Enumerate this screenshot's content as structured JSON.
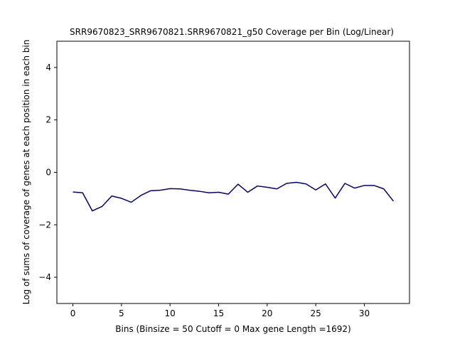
{
  "chart_data": {
    "type": "line",
    "title": "SRR9670823_SRR9670821.SRR9670821_g50 Coverage per Bin (Log/Linear)",
    "xlabel": "Bins  (Binsize = 50 Cutoff = 0 Max gene Length =1692)",
    "ylabel": "Log of sums of coverage of genes at each position in each bin",
    "xlim": [
      -1.65,
      34.65
    ],
    "ylim": [
      -5,
      5
    ],
    "xticks": [
      0,
      5,
      10,
      15,
      20,
      25,
      30
    ],
    "yticks": [
      -4,
      -2,
      0,
      2,
      4
    ],
    "ytick_labels": [
      "−4",
      "−2",
      "0",
      "2",
      "4"
    ],
    "grid": false,
    "series": [
      {
        "color": "#000080",
        "x": [
          0,
          1,
          2,
          3,
          4,
          5,
          6,
          7,
          8,
          9,
          10,
          11,
          12,
          13,
          14,
          15,
          16,
          17,
          18,
          19,
          20,
          21,
          22,
          23,
          24,
          25,
          26,
          27,
          28,
          29,
          30,
          31,
          32,
          33
        ],
        "y": [
          -0.75,
          -0.78,
          -1.47,
          -1.3,
          -0.9,
          -0.99,
          -1.14,
          -0.88,
          -0.7,
          -0.68,
          -0.62,
          -0.63,
          -0.68,
          -0.72,
          -0.78,
          -0.76,
          -0.83,
          -0.45,
          -0.76,
          -0.52,
          -0.57,
          -0.63,
          -0.42,
          -0.38,
          -0.44,
          -0.67,
          -0.44,
          -0.98,
          -0.42,
          -0.6,
          -0.5,
          -0.5,
          -0.63,
          -1.1
        ]
      }
    ]
  }
}
